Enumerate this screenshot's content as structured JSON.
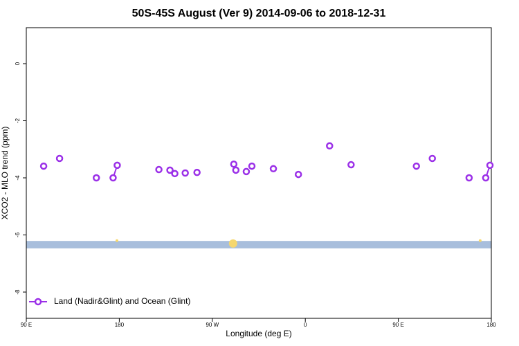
{
  "chart_data": {
    "type": "line",
    "title": "50S-45S August (Ver 9)   2014-09-06 to 2018-12-31",
    "xlabel": "Longitude (deg E)",
    "ylabel": "XCO2 - MLO trend (ppm)",
    "xlim": [
      90,
      540
    ],
    "ylim": [
      -8.92,
      1.26
    ],
    "xticks": [
      {
        "value": 90,
        "label": "90 E"
      },
      {
        "value": 180,
        "label": "180"
      },
      {
        "value": 270,
        "label": "90 W"
      },
      {
        "value": 360,
        "label": "0"
      },
      {
        "value": 450,
        "label": "90 E"
      },
      {
        "value": 540,
        "label": "180"
      }
    ],
    "yticks": [
      0,
      -2,
      -4,
      -6,
      -8
    ],
    "legend": "bottom-left",
    "band": {
      "ymin": -6.47,
      "ymax": -6.21,
      "color": "#a8bedc"
    },
    "highlights": {
      "color": "#f5d76e",
      "x": [
        177.7,
        290.1,
        529.2
      ],
      "y": [
        -6.2,
        -6.3,
        -6.2
      ],
      "sizes": [
        2,
        6,
        2
      ]
    },
    "series": [
      {
        "name": "Land (Nadir&Glint) and Ocean (Glint)",
        "color": "#9b30e8",
        "x": [
          106.8,
          null,
          122.2,
          null,
          157.8,
          null,
          174.0,
          178.0,
          null,
          218.3,
          null,
          229.0,
          null,
          233.7,
          null,
          243.8,
          null,
          255.2,
          null,
          290.8,
          null,
          292.8,
          null,
          302.9,
          null,
          308.3,
          null,
          329.1,
          null,
          353.3,
          null,
          383.5,
          null,
          404.3,
          null,
          467.5,
          null,
          482.9,
          null,
          518.5,
          null,
          534.6,
          538.7
        ],
        "values": [
          -3.59,
          null,
          -3.32,
          null,
          -4.0,
          null,
          -4.0,
          -3.56,
          null,
          -3.71,
          null,
          -3.73,
          null,
          -3.85,
          null,
          -3.83,
          null,
          -3.81,
          null,
          -3.52,
          null,
          -3.73,
          null,
          -3.78,
          null,
          -3.59,
          null,
          -3.68,
          null,
          -3.88,
          null,
          -2.88,
          null,
          -3.54,
          null,
          -3.59,
          null,
          -3.32,
          null,
          -4.0,
          null,
          -4.0,
          -3.56
        ]
      }
    ]
  }
}
